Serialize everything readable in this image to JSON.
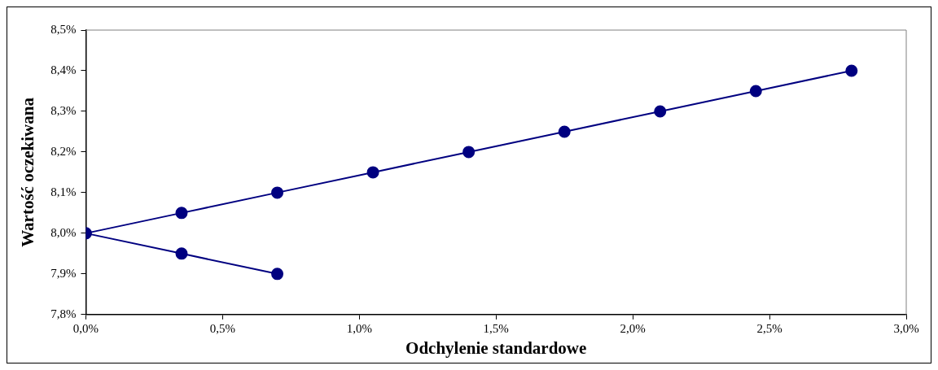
{
  "chart_data": {
    "type": "line",
    "xlabel": "Odchylenie standardowe",
    "ylabel": "Wartość oczekiwana",
    "series": [
      {
        "color": "#000080",
        "x": [
          0.7,
          0.35,
          0,
          0.35,
          0.7,
          1.05,
          1.4,
          1.75,
          2.1,
          2.45,
          2.8
        ],
        "values": [
          7.9,
          7.95,
          8.0,
          8.05,
          8.1,
          8.15,
          8.2,
          8.25,
          8.3,
          8.35,
          8.4
        ]
      }
    ],
    "xlim": [
      0,
      3
    ],
    "xticks": [
      {
        "value": 0,
        "label": "0,0%"
      },
      {
        "value": 0.5,
        "label": "0,5%"
      },
      {
        "value": 1,
        "label": "1,0%"
      },
      {
        "value": 1.5,
        "label": "1,5%"
      },
      {
        "value": 2,
        "label": "2,0%"
      },
      {
        "value": 2.5,
        "label": "2,5%"
      },
      {
        "value": 3,
        "label": "3,0%"
      }
    ],
    "ylim": [
      7.8,
      8.5
    ],
    "yticks": [
      {
        "value": 7.8,
        "label": "7,8%"
      },
      {
        "value": 7.9,
        "label": "7,9%"
      },
      {
        "value": 8.0,
        "label": "8,0%"
      },
      {
        "value": 8.1,
        "label": "8,1%"
      },
      {
        "value": 8.2,
        "label": "8,2%"
      },
      {
        "value": 8.3,
        "label": "8,3%"
      },
      {
        "value": 8.4,
        "label": "8,4%"
      },
      {
        "value": 8.5,
        "label": "8,5%"
      }
    ],
    "grid": false,
    "legend": false,
    "marker": "circle",
    "line_style": "solid"
  }
}
